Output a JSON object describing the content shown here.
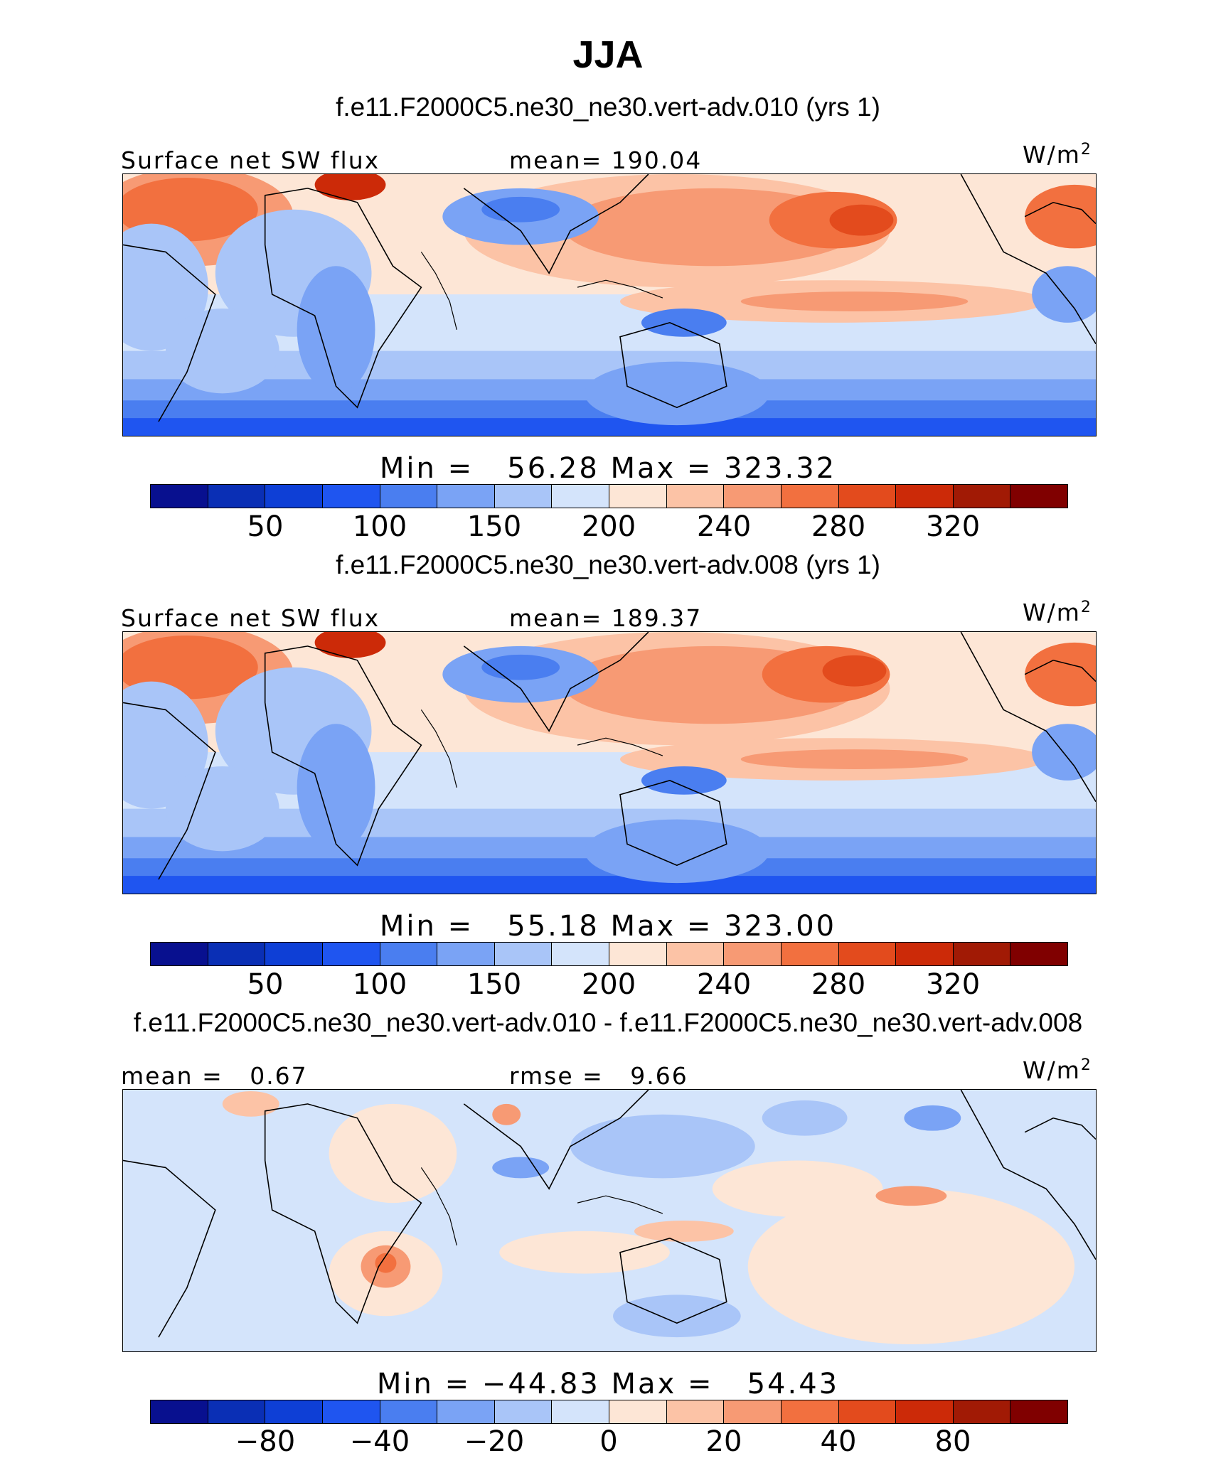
{
  "title": "JJA",
  "panels": [
    {
      "case_title": "f.e11.F2000C5.ne30_ne30.vert-adv.010 (yrs 1)",
      "left_label": "Surface net SW flux",
      "center_label": "mean= 190.04",
      "units": "W/m",
      "units_sup": "2",
      "min_max": "Min =   56.28 Max = 323.32",
      "colorbar_ticks": [
        "50",
        "100",
        "150",
        "200",
        "240",
        "280",
        "320"
      ],
      "kind": "mean"
    },
    {
      "case_title": "f.e11.F2000C5.ne30_ne30.vert-adv.008 (yrs 1)",
      "left_label": "Surface net SW flux",
      "center_label": "mean= 189.37",
      "units": "W/m",
      "units_sup": "2",
      "min_max": "Min =   55.18 Max = 323.00",
      "colorbar_ticks": [
        "50",
        "100",
        "150",
        "200",
        "240",
        "280",
        "320"
      ],
      "kind": "mean"
    },
    {
      "case_title": "f.e11.F2000C5.ne30_ne30.vert-adv.010 - f.e11.F2000C5.ne30_ne30.vert-adv.008",
      "left_label": "mean =   0.67",
      "center_label": "rmse =   9.66",
      "units": "W/m",
      "units_sup": "2",
      "min_max": "Min = −44.83 Max =   54.43",
      "colorbar_ticks": [
        "−80",
        "−40",
        "−20",
        "0",
        "20",
        "40",
        "80"
      ],
      "kind": "diff"
    }
  ],
  "colors": {
    "palette": [
      "#08108f",
      "#0a2fb5",
      "#0e3fd6",
      "#1f55f0",
      "#4a7ef0",
      "#7aa3f5",
      "#a9c5f8",
      "#d4e4fb",
      "#fde6d6",
      "#fcc3a6",
      "#f79a74",
      "#f2703f",
      "#e34b1d",
      "#cc2a08",
      "#a11a05",
      "#800000"
    ]
  }
}
